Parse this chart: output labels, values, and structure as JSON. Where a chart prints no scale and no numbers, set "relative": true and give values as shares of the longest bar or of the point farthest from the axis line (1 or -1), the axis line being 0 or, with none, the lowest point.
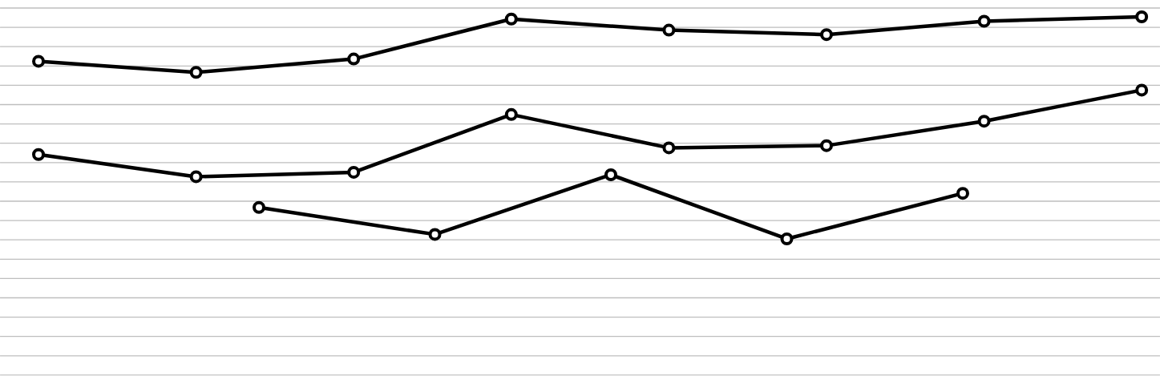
{
  "chart_data": [
    {
      "type": "line",
      "relative": true,
      "grid": "y",
      "marker": "circle",
      "line_style": "solid",
      "categories": [
        null,
        null,
        null,
        null,
        null,
        null,
        null,
        null
      ],
      "series": [
        {
          "color": "#000000",
          "values": [
            0.8,
            0.75,
            0.81,
            0.99,
            0.94,
            0.92,
            0.98,
            1.0
          ]
        },
        {
          "color": "#000000",
          "values": [
            0.38,
            0.28,
            0.3,
            0.56,
            0.41,
            0.42,
            0.53,
            0.67
          ]
        }
      ]
    },
    {
      "type": "line",
      "relative": true,
      "marker": "circle",
      "line_style": "solid",
      "categories": [
        null,
        null,
        null,
        null,
        null
      ],
      "series": [
        {
          "color": "#000000",
          "values": [
            0.49,
            0.07,
            1.0,
            0.0,
            0.71
          ]
        }
      ]
    }
  ]
}
